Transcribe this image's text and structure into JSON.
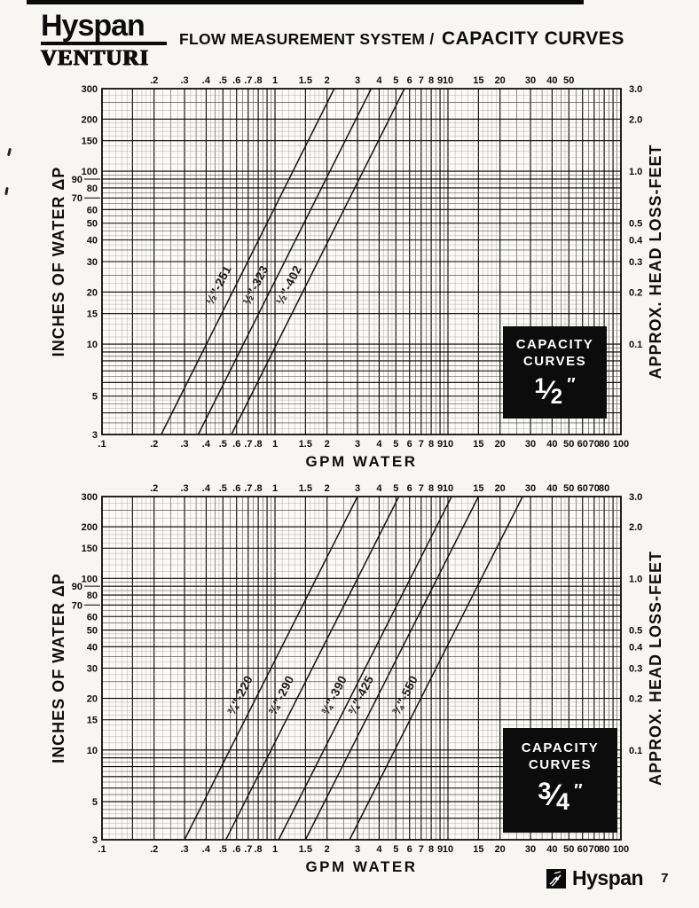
{
  "page": {
    "title_part1": "FLOW MEASUREMENT SYSTEM /",
    "title_part2": "CAPACITY CURVES"
  },
  "brand": {
    "logo_top": "Hyspan",
    "logo_bottom": "VENTURI"
  },
  "footer": {
    "brand": "Hyspan",
    "page_number": "7",
    "logo_icon": "hyspan-bellows-icon"
  },
  "colors": {
    "ink": "#0d0d0d",
    "paper": "#f7f6f2",
    "badge_bg": "#0c0c0c",
    "badge_text": "#ffffff"
  },
  "chart_data": [
    {
      "type": "line",
      "badge": {
        "line1": "CAPACITY",
        "line2": "CURVES",
        "size_numerator": "1",
        "size_denominator": "2",
        "unit_mark": "″",
        "size_text": "1/2 inch"
      },
      "x_axis": {
        "title": "GPM WATER",
        "scale": "log",
        "min": 0.1,
        "max": 100,
        "top_ticks": [
          ".2",
          ".3",
          ".4",
          ".5",
          ".6",
          ".7",
          ".8",
          "1",
          "1.5",
          "2",
          "3",
          "4",
          "5",
          "6",
          "7",
          "8",
          "9",
          "10",
          "15",
          "20",
          "30",
          "40",
          "50"
        ],
        "bottom_ticks": [
          ".1",
          ".2",
          ".3",
          ".4",
          ".5",
          ".6",
          ".7",
          ".8",
          "1",
          "1.5",
          "2",
          "3",
          "4",
          "5",
          "6",
          "7",
          "8",
          "9",
          "10",
          "15",
          "20",
          "30",
          "40",
          "50",
          "60",
          "70",
          "80",
          "100"
        ]
      },
      "y_axis_left": {
        "title": "INCHES OF WATER ΔP",
        "scale": "log",
        "min": 3,
        "max": 300,
        "ticks": [
          "300",
          "200",
          "150",
          "100",
          "90",
          "80",
          "70",
          "60",
          "50",
          "40",
          "30",
          "20",
          "15",
          "10",
          "5",
          "3"
        ],
        "offset_ticks": [
          "90",
          "70"
        ]
      },
      "y_axis_right": {
        "title": "APPROX. HEAD LOSS-FEET",
        "scale": "log",
        "ticks": [
          "3.0",
          "2.0",
          "1.0",
          "0.5",
          "0.4",
          "0.3",
          "0.2",
          "0.1"
        ],
        "inches_dp_per_foot": 100
      },
      "label_dp": 20,
      "series": [
        {
          "name": "½″-251",
          "gpm_at_3in": 0.22,
          "gpm_at_300in": 2.2
        },
        {
          "name": "½″-323",
          "gpm_at_3in": 0.36,
          "gpm_at_300in": 3.6
        },
        {
          "name": "½″-402",
          "gpm_at_3in": 0.56,
          "gpm_at_300in": 5.6
        }
      ]
    },
    {
      "type": "line",
      "badge": {
        "line1": "CAPACITY",
        "line2": "CURVES",
        "size_numerator": "3",
        "size_denominator": "4",
        "unit_mark": "″",
        "size_text": "3/4 inch"
      },
      "x_axis": {
        "title": "GPM WATER",
        "scale": "log",
        "min": 0.1,
        "max": 100,
        "top_ticks": [
          ".2",
          ".3",
          ".4",
          ".5",
          ".6",
          ".7",
          ".8",
          "1",
          "1.5",
          "2",
          "3",
          "4",
          "5",
          "6",
          "7",
          "8",
          "9",
          "10",
          "15",
          "20",
          "30",
          "40",
          "50",
          "60",
          "70",
          "80"
        ],
        "bottom_ticks": [
          ".1",
          ".2",
          ".3",
          ".4",
          ".5",
          ".6",
          ".7",
          ".8",
          "1",
          "1.5",
          "2",
          "3",
          "4",
          "5",
          "6",
          "7",
          "8",
          "9",
          "10",
          "15",
          "20",
          "30",
          "40",
          "50",
          "60",
          "70",
          "80",
          "100"
        ]
      },
      "y_axis_left": {
        "title": "INCHES OF WATER ΔP",
        "scale": "log",
        "min": 3,
        "max": 300,
        "ticks": [
          "300",
          "200",
          "150",
          "100",
          "90",
          "80",
          "70",
          "60",
          "50",
          "40",
          "30",
          "20",
          "15",
          "10",
          "5",
          "3"
        ],
        "offset_ticks": [
          "90",
          "70"
        ]
      },
      "y_axis_right": {
        "title": "APPROX. HEAD LOSS-FEET",
        "scale": "log",
        "ticks": [
          "3.0",
          "2.0",
          "1.0",
          "0.5",
          "0.4",
          "0.3",
          "0.2",
          "0.1"
        ],
        "inches_dp_per_foot": 100
      },
      "label_dp": 19,
      "series": [
        {
          "name": "¾″-220",
          "gpm_at_3in": 0.3,
          "gpm_at_300in": 3.0
        },
        {
          "name": "¾″-290",
          "gpm_at_3in": 0.52,
          "gpm_at_300in": 5.2
        },
        {
          "name": "¾″-390",
          "gpm_at_3in": 1.05,
          "gpm_at_300in": 10.5
        },
        {
          "name": "¾″-425",
          "gpm_at_3in": 1.5,
          "gpm_at_300in": 15.0
        },
        {
          "name": "¾″-550",
          "gpm_at_3in": 2.7,
          "gpm_at_300in": 27.0
        }
      ]
    }
  ]
}
